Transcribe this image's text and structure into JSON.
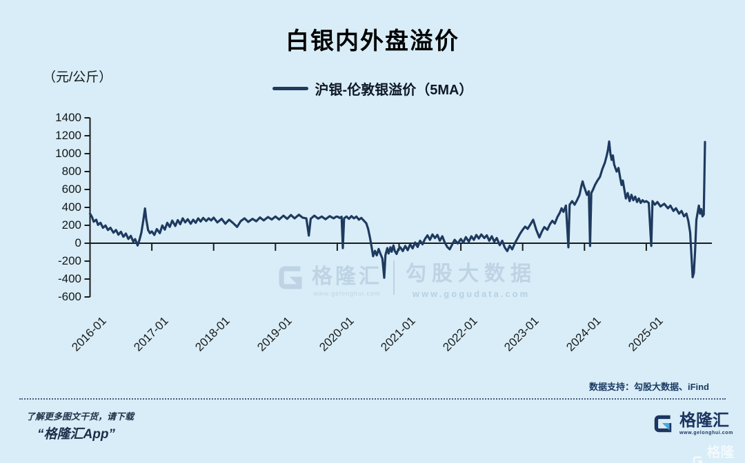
{
  "colors": {
    "background": "#d8edf7",
    "line": "#1f3a5f",
    "axis": "#1a1a1a",
    "watermark": "#a9bfd6",
    "footer_navy": "#1d3560"
  },
  "legend": {
    "label": "沪银-伦敦银溢价（5MA）"
  },
  "watermark": {
    "brand": "格隆汇",
    "brand_url": "www.gelonghui.com",
    "partner": "勾股大数据",
    "partner_url": "www.gogudata.com"
  },
  "data_support": "数据支持：勾股大数据、iFind",
  "footer": {
    "promo_line1": "了解更多图文干货，请下载",
    "promo_line2": "“格隆汇App”",
    "brand": "格隆汇",
    "brand_url": "www.gelonghui.com",
    "corner_brand": "格隆汇"
  },
  "chart_data": {
    "type": "line",
    "title": "白银内外盘溢价",
    "unit_label": "（元/公斤）",
    "xlabel": "",
    "ylabel": "元/公斤",
    "ylim": [
      -600,
      1400
    ],
    "xlim": [
      2016.0,
      2026.0
    ],
    "grid": false,
    "legend_position": "top-center",
    "yticks": [
      1400,
      1200,
      1000,
      800,
      600,
      400,
      200,
      0,
      -200,
      -400,
      -600
    ],
    "xticks": [
      "2016-01",
      "2017-01",
      "2018-01",
      "2019-01",
      "2020-01",
      "2021-01",
      "2022-01",
      "2023-01",
      "2024-01",
      "2025-01"
    ],
    "series": [
      {
        "name": "沪银-伦敦银溢价（5MA）",
        "color": "#1f3a5f",
        "points": [
          [
            2016.0,
            330
          ],
          [
            2016.03,
            295
          ],
          [
            2016.06,
            240
          ],
          [
            2016.1,
            262
          ],
          [
            2016.13,
            205
          ],
          [
            2016.17,
            228
          ],
          [
            2016.21,
            172
          ],
          [
            2016.25,
            198
          ],
          [
            2016.29,
            148
          ],
          [
            2016.33,
            172
          ],
          [
            2016.38,
            118
          ],
          [
            2016.42,
            148
          ],
          [
            2016.46,
            95
          ],
          [
            2016.5,
            128
          ],
          [
            2016.54,
            72
          ],
          [
            2016.58,
            108
          ],
          [
            2016.62,
            48
          ],
          [
            2016.66,
            82
          ],
          [
            2016.7,
            18
          ],
          [
            2016.73,
            45
          ],
          [
            2016.77,
            -25
          ],
          [
            2016.8,
            38
          ],
          [
            2016.83,
            118
          ],
          [
            2016.86,
            248
          ],
          [
            2016.89,
            388
          ],
          [
            2016.91,
            268
          ],
          [
            2016.94,
            148
          ],
          [
            2016.97,
            112
          ],
          [
            2017.0,
            132
          ],
          [
            2017.04,
            92
          ],
          [
            2017.08,
            158
          ],
          [
            2017.13,
            112
          ],
          [
            2017.17,
            198
          ],
          [
            2017.21,
            152
          ],
          [
            2017.25,
            228
          ],
          [
            2017.29,
            182
          ],
          [
            2017.33,
            252
          ],
          [
            2017.38,
            192
          ],
          [
            2017.42,
            258
          ],
          [
            2017.46,
            212
          ],
          [
            2017.5,
            278
          ],
          [
            2017.54,
            232
          ],
          [
            2017.58,
            268
          ],
          [
            2017.63,
            218
          ],
          [
            2017.67,
            262
          ],
          [
            2017.71,
            228
          ],
          [
            2017.75,
            278
          ],
          [
            2017.79,
            242
          ],
          [
            2017.83,
            282
          ],
          [
            2017.88,
            248
          ],
          [
            2017.92,
            278
          ],
          [
            2017.96,
            255
          ],
          [
            2018.0,
            285
          ],
          [
            2018.06,
            232
          ],
          [
            2018.13,
            272
          ],
          [
            2018.19,
            218
          ],
          [
            2018.25,
            262
          ],
          [
            2018.31,
            228
          ],
          [
            2018.38,
            182
          ],
          [
            2018.44,
            248
          ],
          [
            2018.5,
            278
          ],
          [
            2018.56,
            238
          ],
          [
            2018.63,
            272
          ],
          [
            2018.69,
            245
          ],
          [
            2018.75,
            288
          ],
          [
            2018.81,
            255
          ],
          [
            2018.88,
            292
          ],
          [
            2018.94,
            265
          ],
          [
            2019.0,
            298
          ],
          [
            2019.06,
            265
          ],
          [
            2019.13,
            308
          ],
          [
            2019.19,
            272
          ],
          [
            2019.25,
            315
          ],
          [
            2019.31,
            278
          ],
          [
            2019.38,
            318
          ],
          [
            2019.44,
            285
          ],
          [
            2019.5,
            278
          ],
          [
            2019.54,
            85
          ],
          [
            2019.57,
            272
          ],
          [
            2019.63,
            308
          ],
          [
            2019.69,
            275
          ],
          [
            2019.75,
            298
          ],
          [
            2019.81,
            268
          ],
          [
            2019.88,
            302
          ],
          [
            2019.94,
            278
          ],
          [
            2019.98,
            295
          ],
          [
            2020.0,
            298
          ],
          [
            2020.04,
            282
          ],
          [
            2020.07,
            295
          ],
          [
            2020.09,
            -55
          ],
          [
            2020.11,
            278
          ],
          [
            2020.15,
            298
          ],
          [
            2020.19,
            272
          ],
          [
            2020.23,
            302
          ],
          [
            2020.27,
            278
          ],
          [
            2020.31,
            298
          ],
          [
            2020.35,
            262
          ],
          [
            2020.39,
            282
          ],
          [
            2020.43,
            252
          ],
          [
            2020.47,
            222
          ],
          [
            2020.5,
            160
          ],
          [
            2020.53,
            60
          ],
          [
            2020.56,
            -60
          ],
          [
            2020.58,
            -145
          ],
          [
            2020.61,
            -85
          ],
          [
            2020.64,
            -135
          ],
          [
            2020.67,
            -65
          ],
          [
            2020.7,
            -120
          ],
          [
            2020.73,
            -170
          ],
          [
            2020.76,
            -385
          ],
          [
            2020.78,
            -130
          ],
          [
            2020.81,
            -55
          ],
          [
            2020.83,
            -115
          ],
          [
            2020.86,
            -45
          ],
          [
            2020.88,
            -95
          ],
          [
            2020.91,
            -25
          ],
          [
            2020.93,
            -85
          ],
          [
            2020.96,
            -120
          ],
          [
            2020.99,
            -65
          ],
          [
            2021.02,
            -45
          ],
          [
            2021.06,
            -88
          ],
          [
            2021.1,
            -30
          ],
          [
            2021.14,
            -78
          ],
          [
            2021.18,
            -12
          ],
          [
            2021.22,
            -58
          ],
          [
            2021.26,
            8
          ],
          [
            2021.3,
            -42
          ],
          [
            2021.34,
            28
          ],
          [
            2021.38,
            -12
          ],
          [
            2021.42,
            48
          ],
          [
            2021.46,
            88
          ],
          [
            2021.5,
            38
          ],
          [
            2021.54,
            98
          ],
          [
            2021.58,
            58
          ],
          [
            2021.62,
            92
          ],
          [
            2021.66,
            28
          ],
          [
            2021.7,
            78
          ],
          [
            2021.74,
            8
          ],
          [
            2021.78,
            -42
          ],
          [
            2021.82,
            -68
          ],
          [
            2021.86,
            -12
          ],
          [
            2021.9,
            38
          ],
          [
            2021.95,
            -2
          ],
          [
            2022.0,
            48
          ],
          [
            2022.04,
            8
          ],
          [
            2022.08,
            68
          ],
          [
            2022.13,
            18
          ],
          [
            2022.17,
            78
          ],
          [
            2022.21,
            38
          ],
          [
            2022.25,
            92
          ],
          [
            2022.29,
            52
          ],
          [
            2022.33,
            98
          ],
          [
            2022.38,
            58
          ],
          [
            2022.42,
            88
          ],
          [
            2022.46,
            28
          ],
          [
            2022.5,
            78
          ],
          [
            2022.54,
            18
          ],
          [
            2022.58,
            58
          ],
          [
            2022.63,
            -22
          ],
          [
            2022.67,
            28
          ],
          [
            2022.71,
            -48
          ],
          [
            2022.75,
            -88
          ],
          [
            2022.79,
            -28
          ],
          [
            2022.83,
            -68
          ],
          [
            2022.88,
            8
          ],
          [
            2022.92,
            58
          ],
          [
            2022.96,
            108
          ],
          [
            2023.0,
            150
          ],
          [
            2023.04,
            185
          ],
          [
            2023.08,
            160
          ],
          [
            2023.13,
            215
          ],
          [
            2023.17,
            262
          ],
          [
            2023.22,
            150
          ],
          [
            2023.27,
            65
          ],
          [
            2023.31,
            130
          ],
          [
            2023.35,
            180
          ],
          [
            2023.4,
            150
          ],
          [
            2023.44,
            210
          ],
          [
            2023.48,
            250
          ],
          [
            2023.52,
            220
          ],
          [
            2023.56,
            290
          ],
          [
            2023.6,
            340
          ],
          [
            2023.63,
            390
          ],
          [
            2023.66,
            350
          ],
          [
            2023.7,
            420
          ],
          [
            2023.74,
            -45
          ],
          [
            2023.76,
            430
          ],
          [
            2023.8,
            470
          ],
          [
            2023.84,
            430
          ],
          [
            2023.88,
            480
          ],
          [
            2023.92,
            540
          ],
          [
            2023.95,
            640
          ],
          [
            2023.97,
            690
          ],
          [
            2023.99,
            640
          ],
          [
            2024.0,
            620
          ],
          [
            2024.04,
            540
          ],
          [
            2024.07,
            580
          ],
          [
            2024.09,
            -30
          ],
          [
            2024.11,
            560
          ],
          [
            2024.14,
            600
          ],
          [
            2024.17,
            650
          ],
          [
            2024.21,
            700
          ],
          [
            2024.25,
            740
          ],
          [
            2024.29,
            830
          ],
          [
            2024.33,
            900
          ],
          [
            2024.36,
            980
          ],
          [
            2024.38,
            1040
          ],
          [
            2024.4,
            1135
          ],
          [
            2024.42,
            1000
          ],
          [
            2024.44,
            930
          ],
          [
            2024.46,
            980
          ],
          [
            2024.48,
            880
          ],
          [
            2024.52,
            800
          ],
          [
            2024.55,
            840
          ],
          [
            2024.58,
            720
          ],
          [
            2024.6,
            650
          ],
          [
            2024.62,
            700
          ],
          [
            2024.65,
            580
          ],
          [
            2024.67,
            500
          ],
          [
            2024.7,
            560
          ],
          [
            2024.73,
            470
          ],
          [
            2024.76,
            540
          ],
          [
            2024.79,
            480
          ],
          [
            2024.82,
            520
          ],
          [
            2024.85,
            460
          ],
          [
            2024.88,
            500
          ],
          [
            2024.91,
            450
          ],
          [
            2024.94,
            480
          ],
          [
            2024.97,
            460
          ],
          [
            2025.0,
            470
          ],
          [
            2025.04,
            450
          ],
          [
            2025.08,
            -30
          ],
          [
            2025.1,
            470
          ],
          [
            2025.14,
            430
          ],
          [
            2025.18,
            460
          ],
          [
            2025.23,
            410
          ],
          [
            2025.29,
            440
          ],
          [
            2025.35,
            390
          ],
          [
            2025.39,
            420
          ],
          [
            2025.44,
            360
          ],
          [
            2025.48,
            390
          ],
          [
            2025.53,
            330
          ],
          [
            2025.57,
            360
          ],
          [
            2025.61,
            300
          ],
          [
            2025.65,
            330
          ],
          [
            2025.68,
            250
          ],
          [
            2025.71,
            120
          ],
          [
            2025.75,
            -380
          ],
          [
            2025.77,
            -330
          ],
          [
            2025.79,
            -80
          ],
          [
            2025.81,
            260
          ],
          [
            2025.85,
            420
          ],
          [
            2025.87,
            330
          ],
          [
            2025.89,
            380
          ],
          [
            2025.91,
            300
          ],
          [
            2025.93,
            320
          ],
          [
            2025.95,
            1130
          ]
        ]
      }
    ]
  }
}
